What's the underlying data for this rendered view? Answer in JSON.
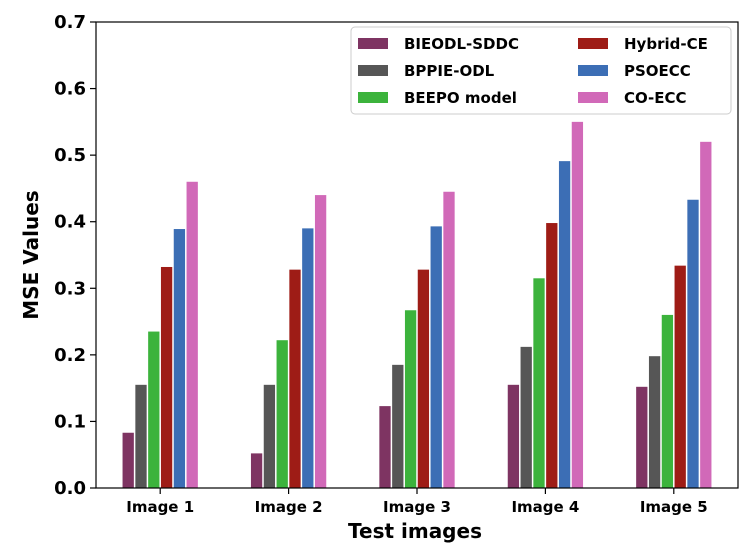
{
  "chart_data": {
    "type": "bar",
    "title": "",
    "xlabel": "Test images",
    "ylabel": "MSE Values",
    "ylim": [
      0,
      0.7
    ],
    "yticks": [
      "0.0",
      "0.1",
      "0.2",
      "0.3",
      "0.4",
      "0.5",
      "0.6",
      "0.7"
    ],
    "categories": [
      "Image 1",
      "Image 2",
      "Image 3",
      "Image 4",
      "Image 5"
    ],
    "series": [
      {
        "name": "BIEODL-SDDC",
        "color": "#7e3462",
        "values": [
          0.083,
          0.052,
          0.123,
          0.155,
          0.152
        ]
      },
      {
        "name": "BPPIE-ODL",
        "color": "#565656",
        "values": [
          0.155,
          0.155,
          0.185,
          0.212,
          0.198
        ]
      },
      {
        "name": "BEEPO model",
        "color": "#3cb33c",
        "values": [
          0.235,
          0.222,
          0.267,
          0.315,
          0.26
        ]
      },
      {
        "name": "Hybrid-CE",
        "color": "#9e1c16",
        "values": [
          0.332,
          0.328,
          0.328,
          0.398,
          0.334
        ]
      },
      {
        "name": "PSOECC",
        "color": "#3c6eb5",
        "values": [
          0.389,
          0.39,
          0.393,
          0.491,
          0.433
        ]
      },
      {
        "name": "CO-ECC",
        "color": "#d169b8",
        "values": [
          0.46,
          0.44,
          0.445,
          0.55,
          0.52
        ]
      }
    ],
    "legend": {
      "position": "top-right",
      "columns": 2
    }
  }
}
